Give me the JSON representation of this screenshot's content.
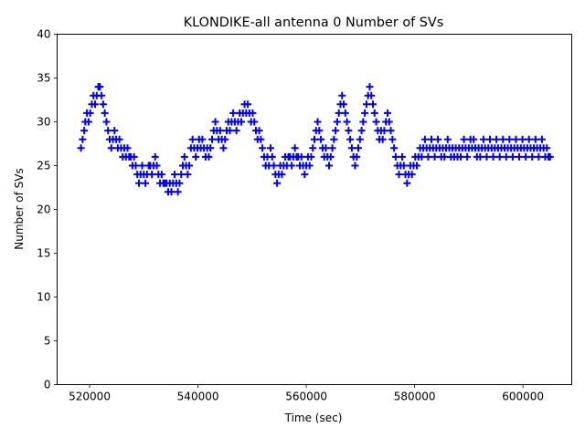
{
  "chart_data": {
    "type": "scatter",
    "title": "KLONDIKE-all antenna 0 Number of SVs",
    "xlabel": "Time (sec)",
    "ylabel": "Number of SVs",
    "xlim": [
      514000,
      609000
    ],
    "ylim": [
      0,
      40
    ],
    "xticks": [
      520000,
      540000,
      560000,
      580000,
      600000
    ],
    "xtick_labels": [
      "520000",
      "540000",
      "560000",
      "580000",
      "600000"
    ],
    "yticks": [
      0,
      5,
      10,
      15,
      20,
      25,
      30,
      35,
      40
    ],
    "ytick_labels": [
      "0",
      "5",
      "10",
      "15",
      "20",
      "25",
      "30",
      "35",
      "40"
    ],
    "marker": "+",
    "color": "#0000ff",
    "series": [
      {
        "name": "antenna 0",
        "points": [
          [
            518400,
            27
          ],
          [
            518700,
            28
          ],
          [
            519000,
            29
          ],
          [
            519200,
            30
          ],
          [
            519500,
            31
          ],
          [
            519800,
            30
          ],
          [
            520100,
            31
          ],
          [
            520400,
            32
          ],
          [
            520700,
            33
          ],
          [
            521000,
            32
          ],
          [
            521300,
            33
          ],
          [
            521600,
            34
          ],
          [
            521900,
            34
          ],
          [
            522200,
            33
          ],
          [
            522500,
            32
          ],
          [
            522800,
            31
          ],
          [
            523100,
            30
          ],
          [
            523400,
            29
          ],
          [
            523700,
            28
          ],
          [
            524000,
            27
          ],
          [
            524300,
            28
          ],
          [
            524600,
            29
          ],
          [
            524900,
            28
          ],
          [
            525200,
            27
          ],
          [
            525500,
            28
          ],
          [
            525800,
            27
          ],
          [
            526100,
            26
          ],
          [
            526400,
            27
          ],
          [
            526700,
            26
          ],
          [
            527000,
            27
          ],
          [
            527300,
            26
          ],
          [
            527600,
            26
          ],
          [
            527900,
            25
          ],
          [
            528200,
            26
          ],
          [
            528500,
            25
          ],
          [
            528800,
            24
          ],
          [
            529100,
            23
          ],
          [
            529400,
            24
          ],
          [
            529700,
            25
          ],
          [
            530000,
            24
          ],
          [
            530300,
            23
          ],
          [
            530600,
            24
          ],
          [
            530900,
            25
          ],
          [
            531200,
            25
          ],
          [
            531500,
            24
          ],
          [
            531800,
            25
          ],
          [
            532100,
            26
          ],
          [
            532400,
            25
          ],
          [
            532700,
            24
          ],
          [
            533000,
            23
          ],
          [
            533300,
            24
          ],
          [
            533600,
            23
          ],
          [
            533900,
            23
          ],
          [
            534200,
            23
          ],
          [
            534500,
            22
          ],
          [
            534800,
            23
          ],
          [
            535100,
            22
          ],
          [
            535400,
            23
          ],
          [
            535700,
            24
          ],
          [
            536000,
            23
          ],
          [
            536300,
            22
          ],
          [
            536600,
            23
          ],
          [
            536900,
            24
          ],
          [
            537200,
            25
          ],
          [
            537500,
            26
          ],
          [
            537800,
            25
          ],
          [
            538100,
            24
          ],
          [
            538400,
            25
          ],
          [
            538700,
            27
          ],
          [
            539000,
            28
          ],
          [
            539300,
            27
          ],
          [
            539600,
            26
          ],
          [
            539900,
            27
          ],
          [
            540200,
            28
          ],
          [
            540500,
            27
          ],
          [
            540800,
            28
          ],
          [
            541100,
            27
          ],
          [
            541400,
            26
          ],
          [
            541700,
            27
          ],
          [
            542000,
            26
          ],
          [
            542300,
            27
          ],
          [
            542600,
            28
          ],
          [
            542900,
            29
          ],
          [
            543200,
            30
          ],
          [
            543500,
            29
          ],
          [
            543800,
            28
          ],
          [
            544100,
            29
          ],
          [
            544400,
            28
          ],
          [
            544700,
            27
          ],
          [
            545000,
            28
          ],
          [
            545300,
            29
          ],
          [
            545600,
            30
          ],
          [
            545900,
            29
          ],
          [
            546200,
            30
          ],
          [
            546500,
            31
          ],
          [
            546800,
            30
          ],
          [
            547100,
            29
          ],
          [
            547400,
            30
          ],
          [
            547700,
            31
          ],
          [
            548000,
            30
          ],
          [
            548300,
            31
          ],
          [
            548600,
            32
          ],
          [
            548900,
            31
          ],
          [
            549200,
            32
          ],
          [
            549500,
            31
          ],
          [
            549800,
            30
          ],
          [
            550100,
            31
          ],
          [
            550400,
            30
          ],
          [
            550700,
            29
          ],
          [
            551000,
            28
          ],
          [
            551300,
            29
          ],
          [
            551600,
            28
          ],
          [
            551900,
            27
          ],
          [
            552200,
            26
          ],
          [
            552500,
            25
          ],
          [
            552800,
            26
          ],
          [
            553100,
            25
          ],
          [
            553400,
            27
          ],
          [
            553700,
            26
          ],
          [
            554000,
            25
          ],
          [
            554300,
            24
          ],
          [
            554600,
            23
          ],
          [
            554900,
            24
          ],
          [
            555200,
            25
          ],
          [
            555500,
            24
          ],
          [
            555800,
            25
          ],
          [
            556100,
            26
          ],
          [
            556400,
            25
          ],
          [
            556700,
            26
          ],
          [
            557000,
            26
          ],
          [
            557300,
            25
          ],
          [
            557600,
            26
          ],
          [
            557900,
            27
          ],
          [
            558200,
            26
          ],
          [
            558500,
            26
          ],
          [
            558800,
            25
          ],
          [
            559100,
            26
          ],
          [
            559400,
            25
          ],
          [
            559700,
            24
          ],
          [
            560000,
            25
          ],
          [
            560300,
            26
          ],
          [
            560600,
            25
          ],
          [
            560900,
            26
          ],
          [
            561200,
            27
          ],
          [
            561500,
            28
          ],
          [
            561800,
            29
          ],
          [
            562100,
            30
          ],
          [
            562400,
            29
          ],
          [
            562700,
            28
          ],
          [
            563000,
            27
          ],
          [
            563300,
            26
          ],
          [
            563600,
            27
          ],
          [
            563900,
            26
          ],
          [
            564200,
            25
          ],
          [
            564500,
            26
          ],
          [
            564800,
            27
          ],
          [
            565100,
            28
          ],
          [
            565400,
            29
          ],
          [
            565700,
            30
          ],
          [
            566000,
            31
          ],
          [
            566300,
            32
          ],
          [
            566600,
            33
          ],
          [
            566900,
            32
          ],
          [
            567200,
            31
          ],
          [
            567500,
            30
          ],
          [
            567800,
            29
          ],
          [
            568100,
            28
          ],
          [
            568400,
            27
          ],
          [
            568700,
            26
          ],
          [
            569000,
            25
          ],
          [
            569300,
            26
          ],
          [
            569600,
            27
          ],
          [
            569900,
            28
          ],
          [
            570200,
            29
          ],
          [
            570500,
            30
          ],
          [
            570800,
            31
          ],
          [
            571100,
            32
          ],
          [
            571400,
            33
          ],
          [
            571700,
            34
          ],
          [
            572000,
            33
          ],
          [
            572300,
            32
          ],
          [
            572600,
            31
          ],
          [
            572900,
            30
          ],
          [
            573200,
            29
          ],
          [
            573500,
            28
          ],
          [
            573800,
            29
          ],
          [
            574100,
            28
          ],
          [
            574400,
            29
          ],
          [
            574700,
            30
          ],
          [
            575000,
            31
          ],
          [
            575300,
            30
          ],
          [
            575600,
            29
          ],
          [
            575900,
            28
          ],
          [
            576200,
            27
          ],
          [
            576500,
            26
          ],
          [
            576800,
            25
          ],
          [
            577100,
            24
          ],
          [
            577400,
            25
          ],
          [
            577700,
            26
          ],
          [
            578000,
            25
          ],
          [
            578300,
            24
          ],
          [
            578600,
            23
          ],
          [
            578900,
            24
          ],
          [
            579200,
            25
          ],
          [
            579500,
            24
          ],
          [
            579800,
            25
          ],
          [
            580100,
            26
          ],
          [
            580400,
            25
          ],
          [
            580700,
            26
          ],
          [
            581000,
            27
          ],
          [
            581300,
            26
          ],
          [
            581600,
            27
          ],
          [
            581900,
            28
          ],
          [
            582200,
            27
          ],
          [
            582500,
            26
          ],
          [
            582800,
            27
          ],
          [
            583100,
            28
          ],
          [
            583400,
            27
          ],
          [
            583700,
            26
          ],
          [
            584000,
            27
          ],
          [
            584300,
            28
          ],
          [
            584600,
            27
          ],
          [
            584900,
            26
          ],
          [
            585200,
            27
          ],
          [
            585500,
            26
          ],
          [
            585800,
            27
          ],
          [
            586100,
            28
          ],
          [
            586400,
            27
          ],
          [
            586700,
            26
          ],
          [
            587000,
            27
          ],
          [
            587300,
            26
          ],
          [
            587600,
            27
          ],
          [
            587900,
            26
          ],
          [
            588200,
            27
          ],
          [
            588500,
            26
          ],
          [
            588800,
            27
          ],
          [
            589100,
            28
          ],
          [
            589400,
            27
          ],
          [
            589700,
            26
          ],
          [
            590000,
            27
          ],
          [
            590300,
            28
          ],
          [
            590600,
            27
          ],
          [
            590900,
            28
          ],
          [
            591200,
            27
          ],
          [
            591500,
            26
          ],
          [
            591800,
            27
          ],
          [
            592100,
            26
          ],
          [
            592400,
            27
          ],
          [
            592700,
            28
          ],
          [
            593000,
            27
          ],
          [
            593300,
            26
          ],
          [
            593600,
            27
          ],
          [
            593900,
            28
          ],
          [
            594200,
            27
          ],
          [
            594500,
            26
          ],
          [
            594800,
            27
          ],
          [
            595100,
            28
          ],
          [
            595400,
            27
          ],
          [
            595700,
            26
          ],
          [
            596000,
            27
          ],
          [
            596300,
            28
          ],
          [
            596600,
            27
          ],
          [
            596900,
            26
          ],
          [
            597200,
            27
          ],
          [
            597500,
            28
          ],
          [
            597800,
            27
          ],
          [
            598100,
            26
          ],
          [
            598400,
            27
          ],
          [
            598700,
            28
          ],
          [
            599000,
            27
          ],
          [
            599300,
            26
          ],
          [
            599600,
            27
          ],
          [
            599900,
            28
          ],
          [
            600200,
            27
          ],
          [
            600500,
            26
          ],
          [
            600800,
            27
          ],
          [
            601100,
            28
          ],
          [
            601400,
            27
          ],
          [
            601700,
            26
          ],
          [
            602000,
            27
          ],
          [
            602300,
            28
          ],
          [
            602600,
            27
          ],
          [
            602900,
            26
          ],
          [
            603200,
            27
          ],
          [
            603500,
            28
          ],
          [
            603800,
            27
          ],
          [
            604100,
            26
          ],
          [
            604400,
            27
          ],
          [
            604700,
            26
          ],
          [
            605000,
            26
          ]
        ]
      }
    ]
  }
}
